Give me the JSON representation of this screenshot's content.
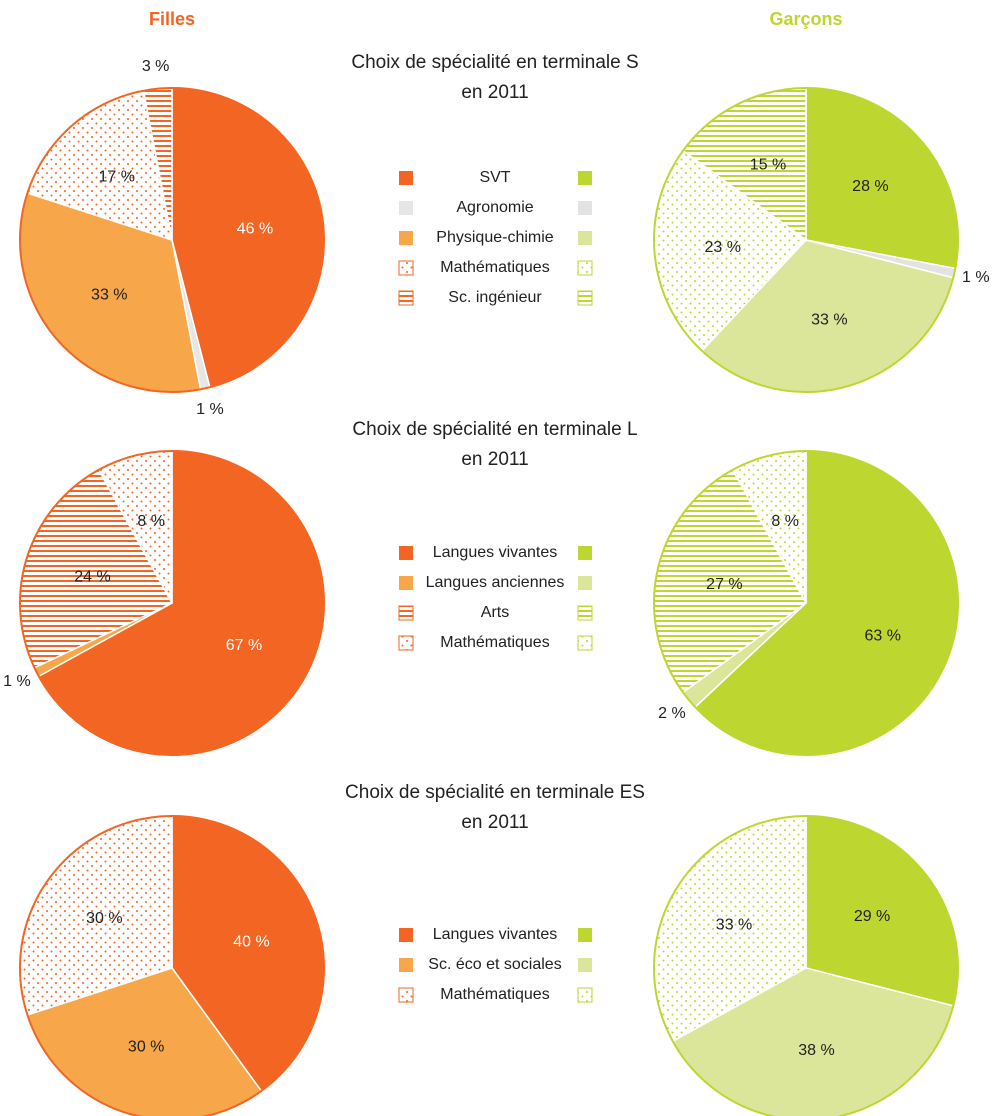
{
  "columns": [
    {
      "name": "Filles",
      "color": "#f26522"
    },
    {
      "name": "Garçons",
      "color": "#bed630"
    }
  ],
  "chart_data": [
    {
      "type": "pie",
      "title": [
        "Choix de spécialité en terminale S",
        "en 2011"
      ],
      "categories": [
        "SVT",
        "Agronomie",
        "Physique-chimie",
        "Mathématiques",
        "Sc. ingénieur"
      ],
      "patterns": [
        "solid",
        "solid",
        "solid",
        "dots",
        "stripes"
      ],
      "series": [
        {
          "colors": [
            "#f26522",
            "#e6e6e6",
            "#f7a64a",
            "#f26522",
            "#f26522"
          ],
          "values": [
            46,
            1,
            33,
            17,
            3
          ],
          "value_labels": [
            "46 %",
            "1 %",
            "33 %",
            "17 %",
            "3 %"
          ]
        },
        {
          "colors": [
            "#bed630",
            "#e3e3e3",
            "#dbe69a",
            "#bed630",
            "#bed630"
          ],
          "values": [
            28,
            1,
            33,
            23,
            15
          ],
          "value_labels": [
            "28 %",
            "1 %",
            "33 %",
            "23 %",
            "15 %"
          ]
        }
      ]
    },
    {
      "type": "pie",
      "title": [
        "Choix de spécialité en terminale L",
        "en 2011"
      ],
      "categories": [
        "Langues vivantes",
        "Langues anciennes",
        "Arts",
        "Mathématiques"
      ],
      "patterns": [
        "solid",
        "solid",
        "stripes",
        "dots"
      ],
      "series": [
        {
          "colors": [
            "#f26522",
            "#f7a64a",
            "#f26522",
            "#f26522"
          ],
          "values": [
            67,
            1,
            24,
            8
          ],
          "value_labels": [
            "67 %",
            "1 %",
            "24 %",
            "8 %"
          ]
        },
        {
          "colors": [
            "#bed630",
            "#dbe69a",
            "#bed630",
            "#bed630"
          ],
          "values": [
            63,
            2,
            27,
            8
          ],
          "value_labels": [
            "63 %",
            "2 %",
            "27 %",
            "8 %"
          ]
        }
      ]
    },
    {
      "type": "pie",
      "title": [
        "Choix de spécialité en terminale ES",
        "en 2011"
      ],
      "categories": [
        "Langues vivantes",
        "Sc. éco et sociales",
        "Mathématiques"
      ],
      "patterns": [
        "solid",
        "solid",
        "dots"
      ],
      "series": [
        {
          "colors": [
            "#f26522",
            "#f7a64a",
            "#f26522"
          ],
          "values": [
            40,
            30,
            30
          ],
          "value_labels": [
            "40 %",
            "30 %",
            "30 %"
          ]
        },
        {
          "colors": [
            "#bed630",
            "#dbe69a",
            "#bed630"
          ],
          "values": [
            29,
            38,
            33
          ],
          "value_labels": [
            "29 %",
            "38 %",
            "33 %"
          ]
        }
      ]
    }
  ]
}
